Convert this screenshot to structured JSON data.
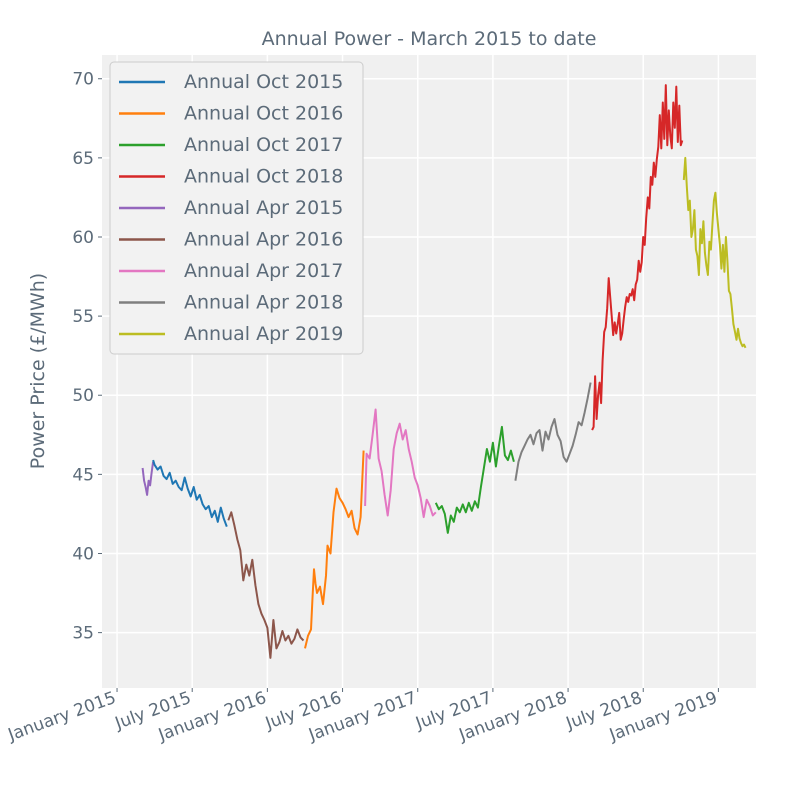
{
  "chart_data": {
    "type": "line",
    "title": "Annual Power - March 2015 to date",
    "xlabel": "",
    "ylabel": "Power Price (£/MWh)",
    "ylim": [
      31.5,
      71.5
    ],
    "xlim": [
      -0.1,
      4.25
    ],
    "grid": true,
    "legend_position": "top-left",
    "x_unit": "years since January 2015",
    "xticks": [
      {
        "value": 0.0,
        "label": "January 2015"
      },
      {
        "value": 0.5,
        "label": "July 2015"
      },
      {
        "value": 1.0,
        "label": "January 2016"
      },
      {
        "value": 1.5,
        "label": "July 2016"
      },
      {
        "value": 2.0,
        "label": "January 2017"
      },
      {
        "value": 2.5,
        "label": "July 2017"
      },
      {
        "value": 3.0,
        "label": "January 2018"
      },
      {
        "value": 3.5,
        "label": "July 2018"
      },
      {
        "value": 4.0,
        "label": "January 2019"
      }
    ],
    "yticks": [
      35,
      40,
      45,
      50,
      55,
      60,
      65,
      70
    ],
    "series": [
      {
        "name": "Annual Apr 2015",
        "color": "#9467bd",
        "x": [
          0.17,
          0.18,
          0.19,
          0.2,
          0.21,
          0.22,
          0.23,
          0.24
        ],
        "y": [
          45.4,
          44.6,
          44.2,
          43.7,
          44.6,
          44.3,
          45.1,
          45.8
        ]
      },
      {
        "name": "Annual Oct 2015",
        "color": "#1f77b4",
        "x": [
          0.24,
          0.25,
          0.27,
          0.29,
          0.31,
          0.33,
          0.35,
          0.37,
          0.39,
          0.41,
          0.43,
          0.45,
          0.47,
          0.49,
          0.51,
          0.53,
          0.55,
          0.57,
          0.59,
          0.61,
          0.63,
          0.65,
          0.67,
          0.69,
          0.71,
          0.73
        ],
        "y": [
          45.9,
          45.6,
          45.3,
          45.5,
          44.9,
          44.7,
          45.1,
          44.4,
          44.6,
          44.2,
          44.0,
          44.8,
          44.1,
          43.6,
          44.2,
          43.4,
          43.7,
          43.1,
          42.8,
          43.0,
          42.3,
          42.7,
          42.0,
          42.9,
          42.2,
          41.7
        ]
      },
      {
        "name": "Annual Apr 2016",
        "color": "#8c564b",
        "x": [
          0.74,
          0.76,
          0.78,
          0.8,
          0.82,
          0.84,
          0.86,
          0.88,
          0.9,
          0.92,
          0.94,
          0.96,
          0.98,
          1.0,
          1.02,
          1.04,
          1.05,
          1.06,
          1.08,
          1.1,
          1.12,
          1.14,
          1.16,
          1.18,
          1.2,
          1.22,
          1.24
        ],
        "y": [
          42.1,
          42.6,
          41.8,
          40.9,
          40.2,
          38.3,
          39.3,
          38.6,
          39.6,
          38.0,
          36.8,
          36.2,
          35.8,
          35.3,
          33.4,
          35.8,
          34.9,
          34.0,
          34.4,
          35.1,
          34.5,
          34.8,
          34.3,
          34.6,
          35.2,
          34.7,
          34.5
        ]
      },
      {
        "name": "Annual Oct 2016",
        "color": "#ff7f0e",
        "x": [
          1.25,
          1.27,
          1.29,
          1.3,
          1.31,
          1.32,
          1.33,
          1.35,
          1.37,
          1.39,
          1.4,
          1.42,
          1.44,
          1.46,
          1.48,
          1.5,
          1.52,
          1.54,
          1.56,
          1.58,
          1.6,
          1.62,
          1.64
        ],
        "y": [
          34.0,
          34.8,
          35.2,
          37.2,
          39.0,
          38.1,
          37.5,
          37.9,
          36.8,
          38.6,
          40.5,
          40.0,
          42.6,
          44.1,
          43.5,
          43.2,
          42.8,
          42.3,
          42.7,
          41.6,
          41.2,
          42.3,
          46.5
        ]
      },
      {
        "name": "Annual Apr 2017",
        "color": "#e377c2",
        "x": [
          1.65,
          1.66,
          1.68,
          1.7,
          1.72,
          1.74,
          1.76,
          1.78,
          1.8,
          1.82,
          1.84,
          1.86,
          1.88,
          1.9,
          1.92,
          1.94,
          1.96,
          1.98,
          2.0,
          2.02,
          2.04,
          2.06,
          2.08,
          2.1,
          2.12
        ],
        "y": [
          43.0,
          46.3,
          46.0,
          47.5,
          49.1,
          46.0,
          45.2,
          43.7,
          42.4,
          44.0,
          46.6,
          47.6,
          48.2,
          47.2,
          47.8,
          46.6,
          45.8,
          44.8,
          44.3,
          43.5,
          42.3,
          43.4,
          43.0,
          42.4,
          42.6
        ]
      },
      {
        "name": "Annual Oct 2017",
        "color": "#2ca02c",
        "x": [
          2.12,
          2.14,
          2.16,
          2.18,
          2.2,
          2.22,
          2.24,
          2.26,
          2.28,
          2.3,
          2.32,
          2.34,
          2.36,
          2.38,
          2.4,
          2.42,
          2.44,
          2.46,
          2.48,
          2.5,
          2.52,
          2.54,
          2.56,
          2.58,
          2.6,
          2.62,
          2.64
        ],
        "y": [
          43.2,
          42.8,
          43.0,
          42.5,
          41.3,
          42.4,
          42.0,
          42.9,
          42.6,
          43.1,
          42.6,
          43.2,
          42.7,
          43.3,
          42.9,
          44.2,
          45.4,
          46.6,
          45.8,
          47.0,
          45.5,
          46.8,
          48.0,
          46.2,
          45.9,
          46.5,
          45.8
        ]
      },
      {
        "name": "Annual Apr 2018",
        "color": "#7f7f7f",
        "x": [
          2.65,
          2.67,
          2.69,
          2.71,
          2.73,
          2.75,
          2.77,
          2.79,
          2.81,
          2.83,
          2.85,
          2.87,
          2.89,
          2.91,
          2.93,
          2.95,
          2.97,
          2.99,
          3.01,
          3.03,
          3.05,
          3.07,
          3.09,
          3.11,
          3.13,
          3.15
        ],
        "y": [
          44.6,
          45.8,
          46.4,
          46.8,
          47.2,
          47.5,
          46.9,
          47.6,
          47.8,
          46.5,
          47.7,
          47.2,
          48.0,
          48.5,
          47.5,
          47.1,
          46.1,
          45.8,
          46.3,
          46.8,
          47.5,
          48.3,
          48.1,
          48.9,
          49.8,
          50.8
        ]
      },
      {
        "name": "Annual Oct 2018",
        "color": "#d62728",
        "x": [
          3.16,
          3.17,
          3.18,
          3.19,
          3.2,
          3.21,
          3.22,
          3.23,
          3.24,
          3.25,
          3.26,
          3.27,
          3.28,
          3.29,
          3.3,
          3.31,
          3.32,
          3.33,
          3.34,
          3.35,
          3.36,
          3.37,
          3.38,
          3.39,
          3.4,
          3.41,
          3.42,
          3.43,
          3.44,
          3.45,
          3.46,
          3.47,
          3.48,
          3.49,
          3.5,
          3.51,
          3.52,
          3.53,
          3.54,
          3.55,
          3.56,
          3.57,
          3.58,
          3.59,
          3.6,
          3.61,
          3.62,
          3.63,
          3.64,
          3.65,
          3.66,
          3.67,
          3.68,
          3.69,
          3.7,
          3.71,
          3.72,
          3.73,
          3.74,
          3.75,
          3.76
        ],
        "y": [
          47.8,
          48.0,
          51.2,
          48.5,
          50.0,
          50.8,
          49.5,
          52.2,
          54.0,
          54.3,
          55.5,
          57.4,
          56.2,
          55.0,
          53.8,
          54.6,
          53.9,
          54.5,
          55.2,
          53.5,
          53.9,
          54.8,
          55.6,
          56.2,
          55.9,
          56.4,
          56.3,
          56.7,
          56.0,
          57.0,
          57.3,
          58.5,
          57.8,
          58.4,
          60.0,
          59.5,
          61.2,
          62.5,
          61.8,
          63.8,
          63.3,
          64.7,
          63.8,
          64.9,
          65.7,
          67.7,
          65.6,
          68.5,
          66.2,
          69.6,
          65.8,
          68.0,
          66.4,
          65.6,
          68.5,
          66.9,
          69.5,
          66.0,
          68.3,
          65.8,
          66.1
        ]
      },
      {
        "name": "Annual Apr 2019",
        "color": "#bcbd22",
        "x": [
          3.77,
          3.78,
          3.79,
          3.8,
          3.81,
          3.82,
          3.83,
          3.84,
          3.85,
          3.86,
          3.87,
          3.88,
          3.89,
          3.9,
          3.91,
          3.92,
          3.93,
          3.94,
          3.95,
          3.96,
          3.97,
          3.98,
          3.99,
          4.0,
          4.01,
          4.02,
          4.03,
          4.04,
          4.05,
          4.06,
          4.07,
          4.08,
          4.09,
          4.1,
          4.11,
          4.12,
          4.13,
          4.14,
          4.15,
          4.16,
          4.17,
          4.18
        ],
        "y": [
          63.6,
          65.0,
          63.2,
          61.7,
          62.3,
          60.0,
          60.5,
          61.7,
          59.2,
          58.8,
          57.6,
          60.5,
          59.6,
          61.0,
          59.0,
          58.2,
          57.6,
          59.7,
          59.2,
          60.8,
          62.3,
          62.8,
          61.5,
          60.5,
          59.5,
          58.0,
          59.5,
          57.8,
          60.0,
          58.5,
          56.6,
          56.4,
          55.5,
          54.5,
          54.0,
          53.5,
          54.2,
          53.6,
          53.3,
          53.1,
          53.2,
          53.0
        ]
      }
    ],
    "legend": [
      "Annual Oct 2015",
      "Annual Oct 2016",
      "Annual Oct 2017",
      "Annual Oct 2018",
      "Annual Apr 2015",
      "Annual Apr 2016",
      "Annual Apr 2017",
      "Annual Apr 2018",
      "Annual Apr 2019"
    ]
  }
}
